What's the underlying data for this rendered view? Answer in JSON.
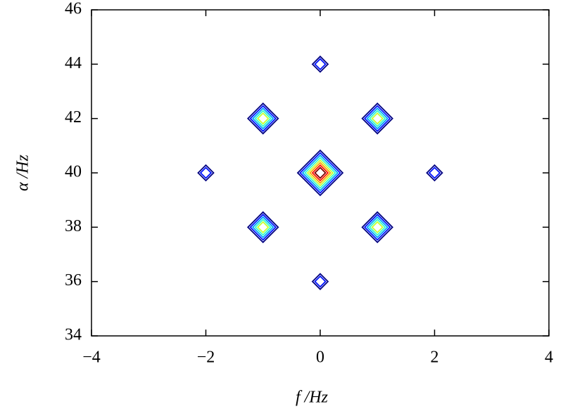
{
  "chart_data": {
    "type": "contour",
    "x": [
      0,
      -1,
      1,
      -2,
      0,
      2,
      -1,
      1,
      0
    ],
    "y": [
      44,
      42,
      42,
      40,
      40,
      40,
      38,
      38,
      36
    ],
    "levels": [
      2,
      5,
      5,
      2,
      8,
      2,
      5,
      5,
      2
    ],
    "xlim": [
      -4,
      4
    ],
    "xticks": [
      {
        "value": -4,
        "label": "−4"
      },
      {
        "value": -2,
        "label": "−2"
      },
      0,
      2,
      4
    ],
    "ylim": [
      34,
      46
    ],
    "yticks": [
      34,
      36,
      38,
      40,
      42,
      44,
      46
    ],
    "xlabel": "f /Hz",
    "ylabel": "α /Hz",
    "colormap": "jet",
    "grid": false
  }
}
